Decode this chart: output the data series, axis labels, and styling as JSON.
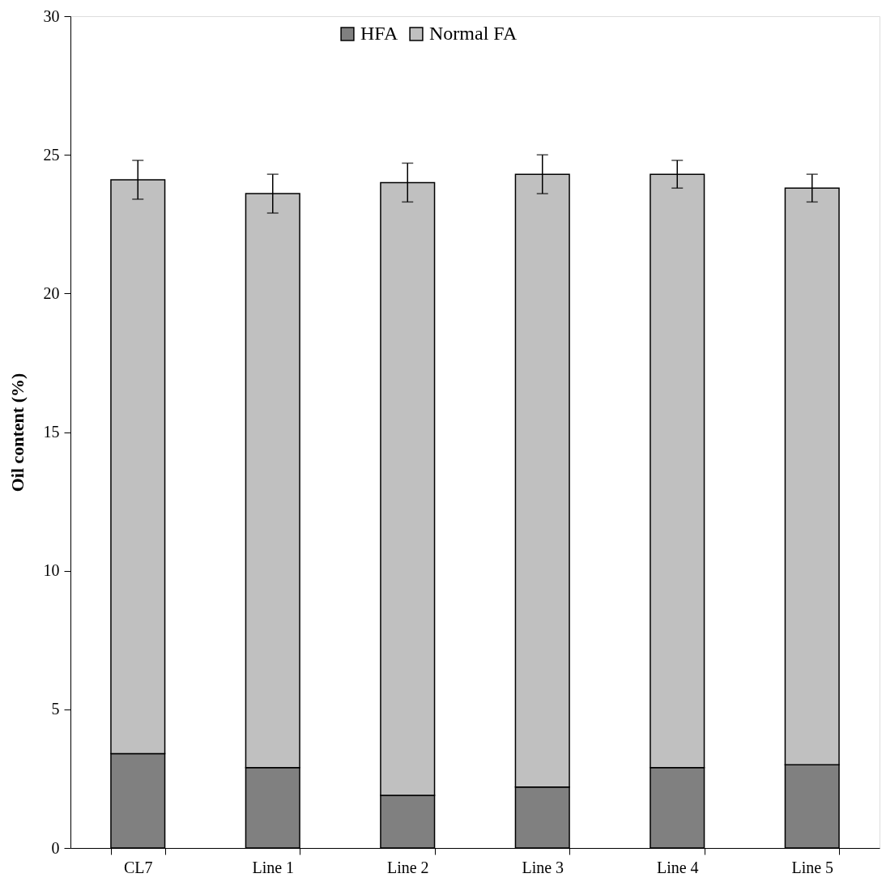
{
  "chart_data": {
    "type": "bar",
    "stacked": true,
    "ylabel": "Oil content (%)",
    "categories": [
      "CL7",
      "Line 1",
      "Line 2",
      "Line 3",
      "Line 4",
      "Line 5"
    ],
    "series": [
      {
        "name": "HFA",
        "color": "#808080",
        "values": [
          3.4,
          2.9,
          1.9,
          2.2,
          2.9,
          3.0
        ]
      },
      {
        "name": "Normal FA",
        "color": "#c0c0c0",
        "values": [
          20.7,
          20.7,
          22.1,
          22.1,
          21.4,
          20.8
        ],
        "errors": [
          0.7,
          0.7,
          0.7,
          0.7,
          0.5,
          0.5
        ]
      }
    ],
    "ylim": [
      0,
      30
    ],
    "yticks": [
      0,
      5,
      10,
      15,
      20,
      25,
      30
    ],
    "grid": false,
    "legend": "top"
  }
}
